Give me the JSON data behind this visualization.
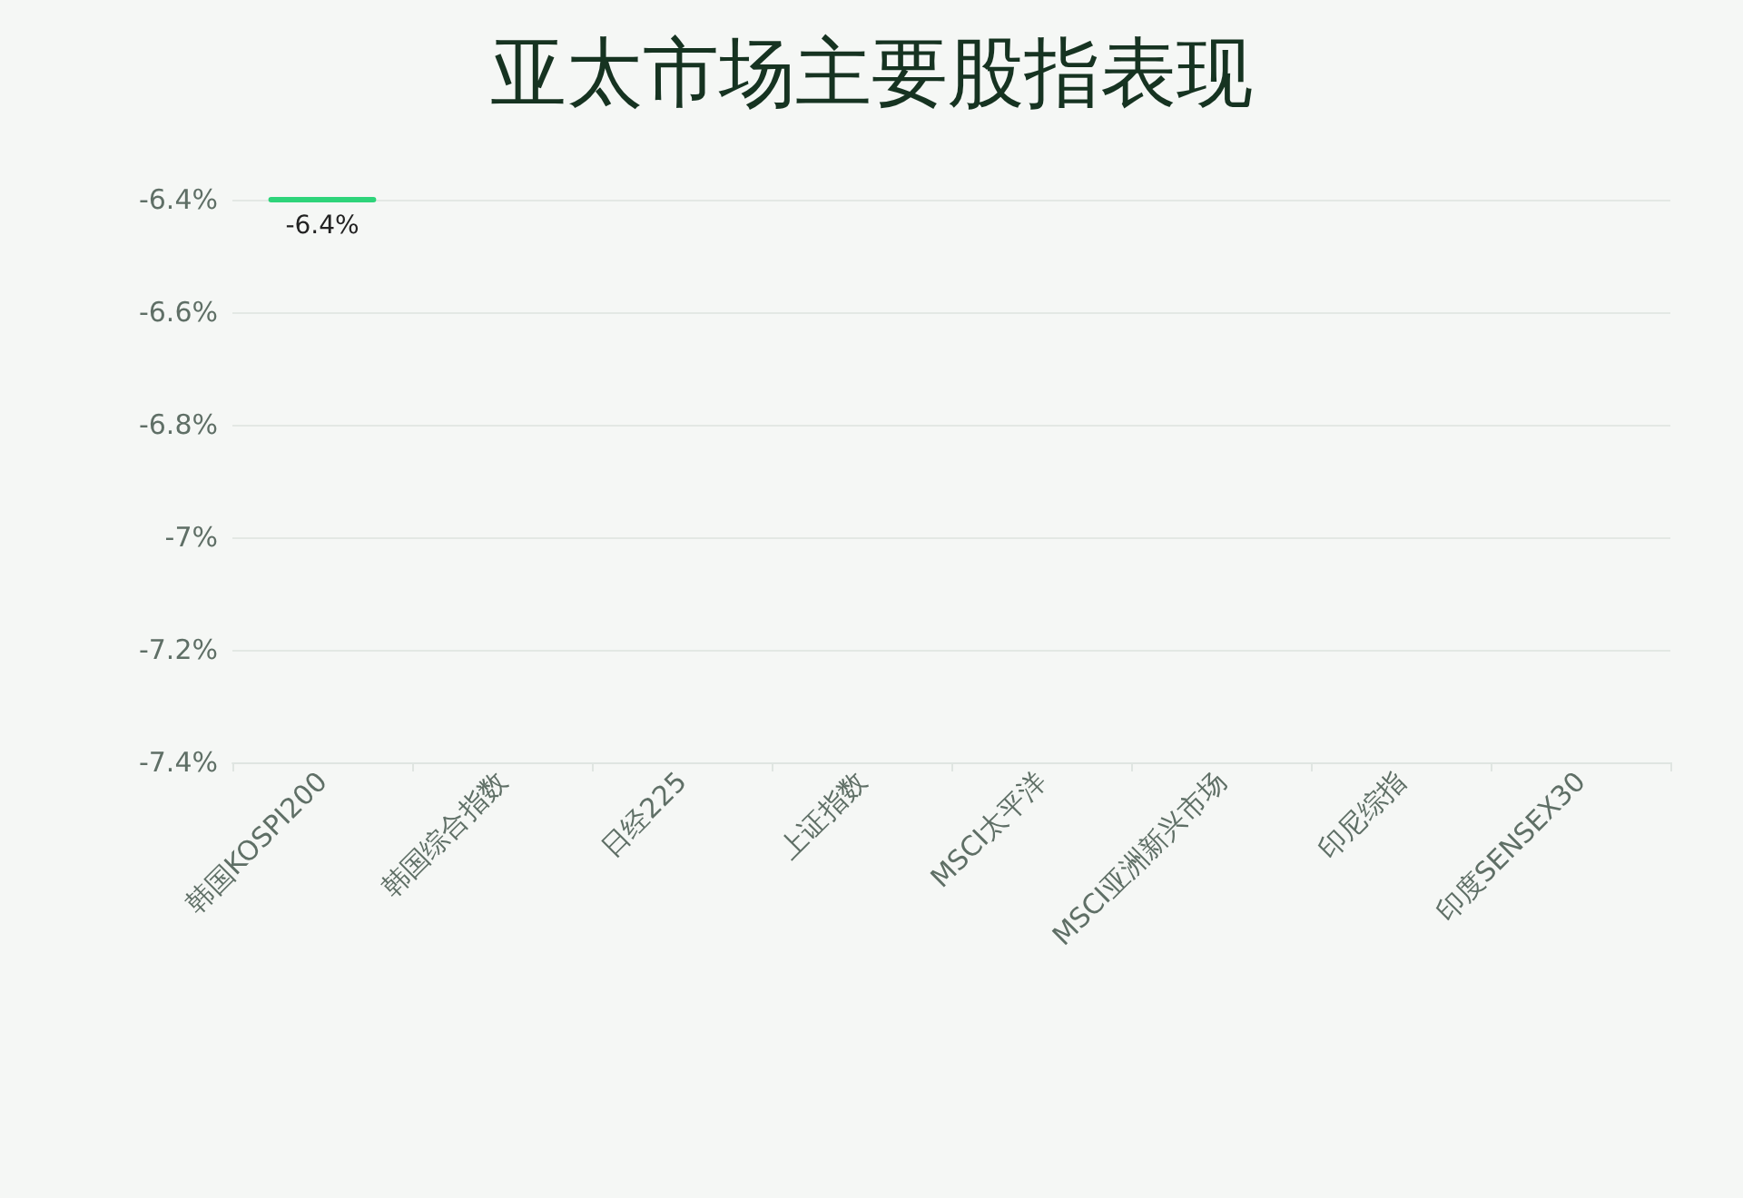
{
  "chart_data": {
    "type": "bar",
    "title": "亚太市场主要股指表现",
    "categories": [
      "韩国KOSPI200",
      "韩国综合指数",
      "日经225",
      "上证指数",
      "MSCI太平洋",
      "MSCI亚洲新兴市场",
      "印尼综指",
      "印度SENSEX30"
    ],
    "values": [
      -6.4,
      null,
      null,
      null,
      null,
      null,
      null,
      null
    ],
    "value_labels": [
      "-6.4%",
      null,
      null,
      null,
      null,
      null,
      null,
      null
    ],
    "color": "#2ed47a",
    "ylim": [
      -7.4,
      -6.4
    ],
    "yticks": [
      {
        "value": -7.4,
        "label": "-7.4%"
      },
      {
        "value": -7.2,
        "label": "-7.2%"
      },
      {
        "value": -7,
        "label": "-7%"
      },
      {
        "value": -6.8,
        "label": "-6.8%"
      },
      {
        "value": -6.6,
        "label": "-6.6%"
      },
      {
        "value": -6.4,
        "label": "-6.4%"
      }
    ],
    "grid": "y"
  }
}
